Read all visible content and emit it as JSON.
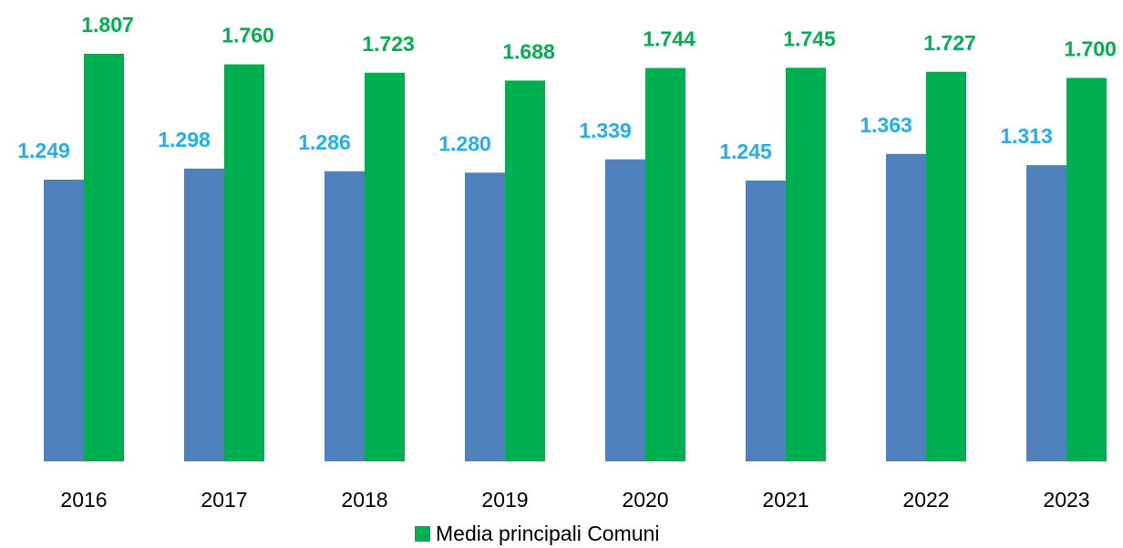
{
  "chart_data": {
    "type": "bar",
    "categories": [
      "2016",
      "2017",
      "2018",
      "2019",
      "2020",
      "2021",
      "2022",
      "2023"
    ],
    "series": [
      {
        "color": "#4f81bd",
        "label_color": "#1fb0f0",
        "values": [
          1249,
          1298,
          1286,
          1280,
          1339,
          1245,
          1363,
          1313
        ],
        "value_labels": [
          "1.249",
          "1.298",
          "1.286",
          "1.280",
          "1.339",
          "1.245",
          "1.363",
          "1.313"
        ]
      },
      {
        "name": "Media principali Comuni",
        "color": "#00b050",
        "label_color": "#00b050",
        "values": [
          1807,
          1760,
          1723,
          1688,
          1744,
          1745,
          1727,
          1700
        ],
        "value_labels": [
          "1.807",
          "1.760",
          "1.723",
          "1.688",
          "1.744",
          "1.745",
          "1.727",
          "1.700"
        ]
      }
    ],
    "legend": "bottom"
  }
}
